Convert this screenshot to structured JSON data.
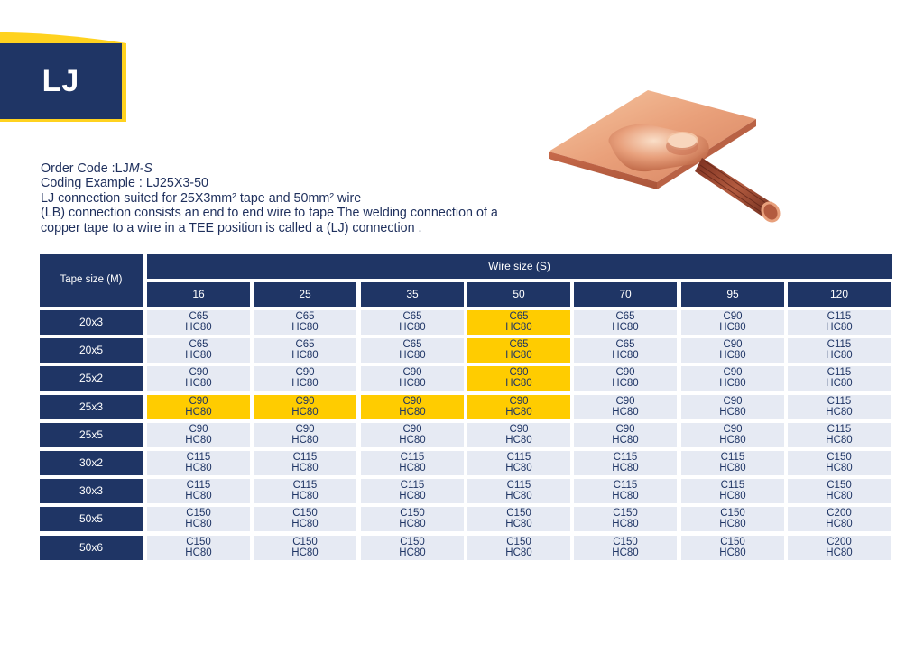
{
  "page": {
    "badge": "LJ"
  },
  "info": {
    "order_code_prefix": "Order Code :LJ",
    "order_code_suffix": "M-S",
    "coding_example": "Coding Example : LJ25X3-50",
    "description": "LJ connection suited for 25X3mm² tape and 50mm² wire",
    "note": "(LB) connection consists an end to end wire to tape The welding connection of a copper tape to a wire in a TEE position is called a (LJ) connection ."
  },
  "colors": {
    "navy": "#1f3565",
    "highlight": "#ffcc00",
    "cell": "#e6eaf3",
    "stripe": "#ffd21f"
  },
  "table": {
    "tape_header": "Tape size (M)",
    "wire_header": "Wire size (S)",
    "wire_sizes": [
      "16",
      "25",
      "35",
      "50",
      "70",
      "95",
      "120"
    ],
    "rows": [
      {
        "tape": "20x3",
        "cells": [
          {
            "top": "C65",
            "bottom": "HC80",
            "highlight": false
          },
          {
            "top": "C65",
            "bottom": "HC80",
            "highlight": false
          },
          {
            "top": "C65",
            "bottom": "HC80",
            "highlight": false
          },
          {
            "top": "C65",
            "bottom": "HC80",
            "highlight": true
          },
          {
            "top": "C65",
            "bottom": "HC80",
            "highlight": false
          },
          {
            "top": "C90",
            "bottom": "HC80",
            "highlight": false
          },
          {
            "top": "C115",
            "bottom": "HC80",
            "highlight": false
          }
        ]
      },
      {
        "tape": "20x5",
        "cells": [
          {
            "top": "C65",
            "bottom": "HC80",
            "highlight": false
          },
          {
            "top": "C65",
            "bottom": "HC80",
            "highlight": false
          },
          {
            "top": "C65",
            "bottom": "HC80",
            "highlight": false
          },
          {
            "top": "C65",
            "bottom": "HC80",
            "highlight": true
          },
          {
            "top": "C65",
            "bottom": "HC80",
            "highlight": false
          },
          {
            "top": "C90",
            "bottom": "HC80",
            "highlight": false
          },
          {
            "top": "C115",
            "bottom": "HC80",
            "highlight": false
          }
        ]
      },
      {
        "tape": "25x2",
        "cells": [
          {
            "top": "C90",
            "bottom": "HC80",
            "highlight": false
          },
          {
            "top": "C90",
            "bottom": "HC80",
            "highlight": false
          },
          {
            "top": "C90",
            "bottom": "HC80",
            "highlight": false
          },
          {
            "top": "C90",
            "bottom": "HC80",
            "highlight": true
          },
          {
            "top": "C90",
            "bottom": "HC80",
            "highlight": false
          },
          {
            "top": "C90",
            "bottom": "HC80",
            "highlight": false
          },
          {
            "top": "C115",
            "bottom": "HC80",
            "highlight": false
          }
        ]
      },
      {
        "tape": "25x3",
        "cells": [
          {
            "top": "C90",
            "bottom": "HC80",
            "highlight": true
          },
          {
            "top": "C90",
            "bottom": "HC80",
            "highlight": true
          },
          {
            "top": "C90",
            "bottom": "HC80",
            "highlight": true
          },
          {
            "top": "C90",
            "bottom": "HC80",
            "highlight": true
          },
          {
            "top": "C90",
            "bottom": "HC80",
            "highlight": false
          },
          {
            "top": "C90",
            "bottom": "HC80",
            "highlight": false
          },
          {
            "top": "C115",
            "bottom": "HC80",
            "highlight": false
          }
        ]
      },
      {
        "tape": "25x5",
        "cells": [
          {
            "top": "C90",
            "bottom": "HC80",
            "highlight": false
          },
          {
            "top": "C90",
            "bottom": "HC80",
            "highlight": false
          },
          {
            "top": "C90",
            "bottom": "HC80",
            "highlight": false
          },
          {
            "top": "C90",
            "bottom": "HC80",
            "highlight": false
          },
          {
            "top": "C90",
            "bottom": "HC80",
            "highlight": false
          },
          {
            "top": "C90",
            "bottom": "HC80",
            "highlight": false
          },
          {
            "top": "C115",
            "bottom": "HC80",
            "highlight": false
          }
        ]
      },
      {
        "tape": "30x2",
        "cells": [
          {
            "top": "C115",
            "bottom": "HC80",
            "highlight": false
          },
          {
            "top": "C115",
            "bottom": "HC80",
            "highlight": false
          },
          {
            "top": "C115",
            "bottom": "HC80",
            "highlight": false
          },
          {
            "top": "C115",
            "bottom": "HC80",
            "highlight": false
          },
          {
            "top": "C115",
            "bottom": "HC80",
            "highlight": false
          },
          {
            "top": "C115",
            "bottom": "HC80",
            "highlight": false
          },
          {
            "top": "C150",
            "bottom": "HC80",
            "highlight": false
          }
        ]
      },
      {
        "tape": "30x3",
        "cells": [
          {
            "top": "C115",
            "bottom": "HC80",
            "highlight": false
          },
          {
            "top": "C115",
            "bottom": "HC80",
            "highlight": false
          },
          {
            "top": "C115",
            "bottom": "HC80",
            "highlight": false
          },
          {
            "top": "C115",
            "bottom": "HC80",
            "highlight": false
          },
          {
            "top": "C115",
            "bottom": "HC80",
            "highlight": false
          },
          {
            "top": "C115",
            "bottom": "HC80",
            "highlight": false
          },
          {
            "top": "C150",
            "bottom": "HC80",
            "highlight": false
          }
        ]
      },
      {
        "tape": "50x5",
        "cells": [
          {
            "top": "C150",
            "bottom": "HC80",
            "highlight": false
          },
          {
            "top": "C150",
            "bottom": "HC80",
            "highlight": false
          },
          {
            "top": "C150",
            "bottom": "HC80",
            "highlight": false
          },
          {
            "top": "C150",
            "bottom": "HC80",
            "highlight": false
          },
          {
            "top": "C150",
            "bottom": "HC80",
            "highlight": false
          },
          {
            "top": "C150",
            "bottom": "HC80",
            "highlight": false
          },
          {
            "top": "C200",
            "bottom": "HC80",
            "highlight": false
          }
        ]
      },
      {
        "tape": "50x6",
        "cells": [
          {
            "top": "C150",
            "bottom": "HC80",
            "highlight": false
          },
          {
            "top": "C150",
            "bottom": "HC80",
            "highlight": false
          },
          {
            "top": "C150",
            "bottom": "HC80",
            "highlight": false
          },
          {
            "top": "C150",
            "bottom": "HC80",
            "highlight": false
          },
          {
            "top": "C150",
            "bottom": "HC80",
            "highlight": false
          },
          {
            "top": "C150",
            "bottom": "HC80",
            "highlight": false
          },
          {
            "top": "C200",
            "bottom": "HC80",
            "highlight": false
          }
        ]
      }
    ]
  }
}
